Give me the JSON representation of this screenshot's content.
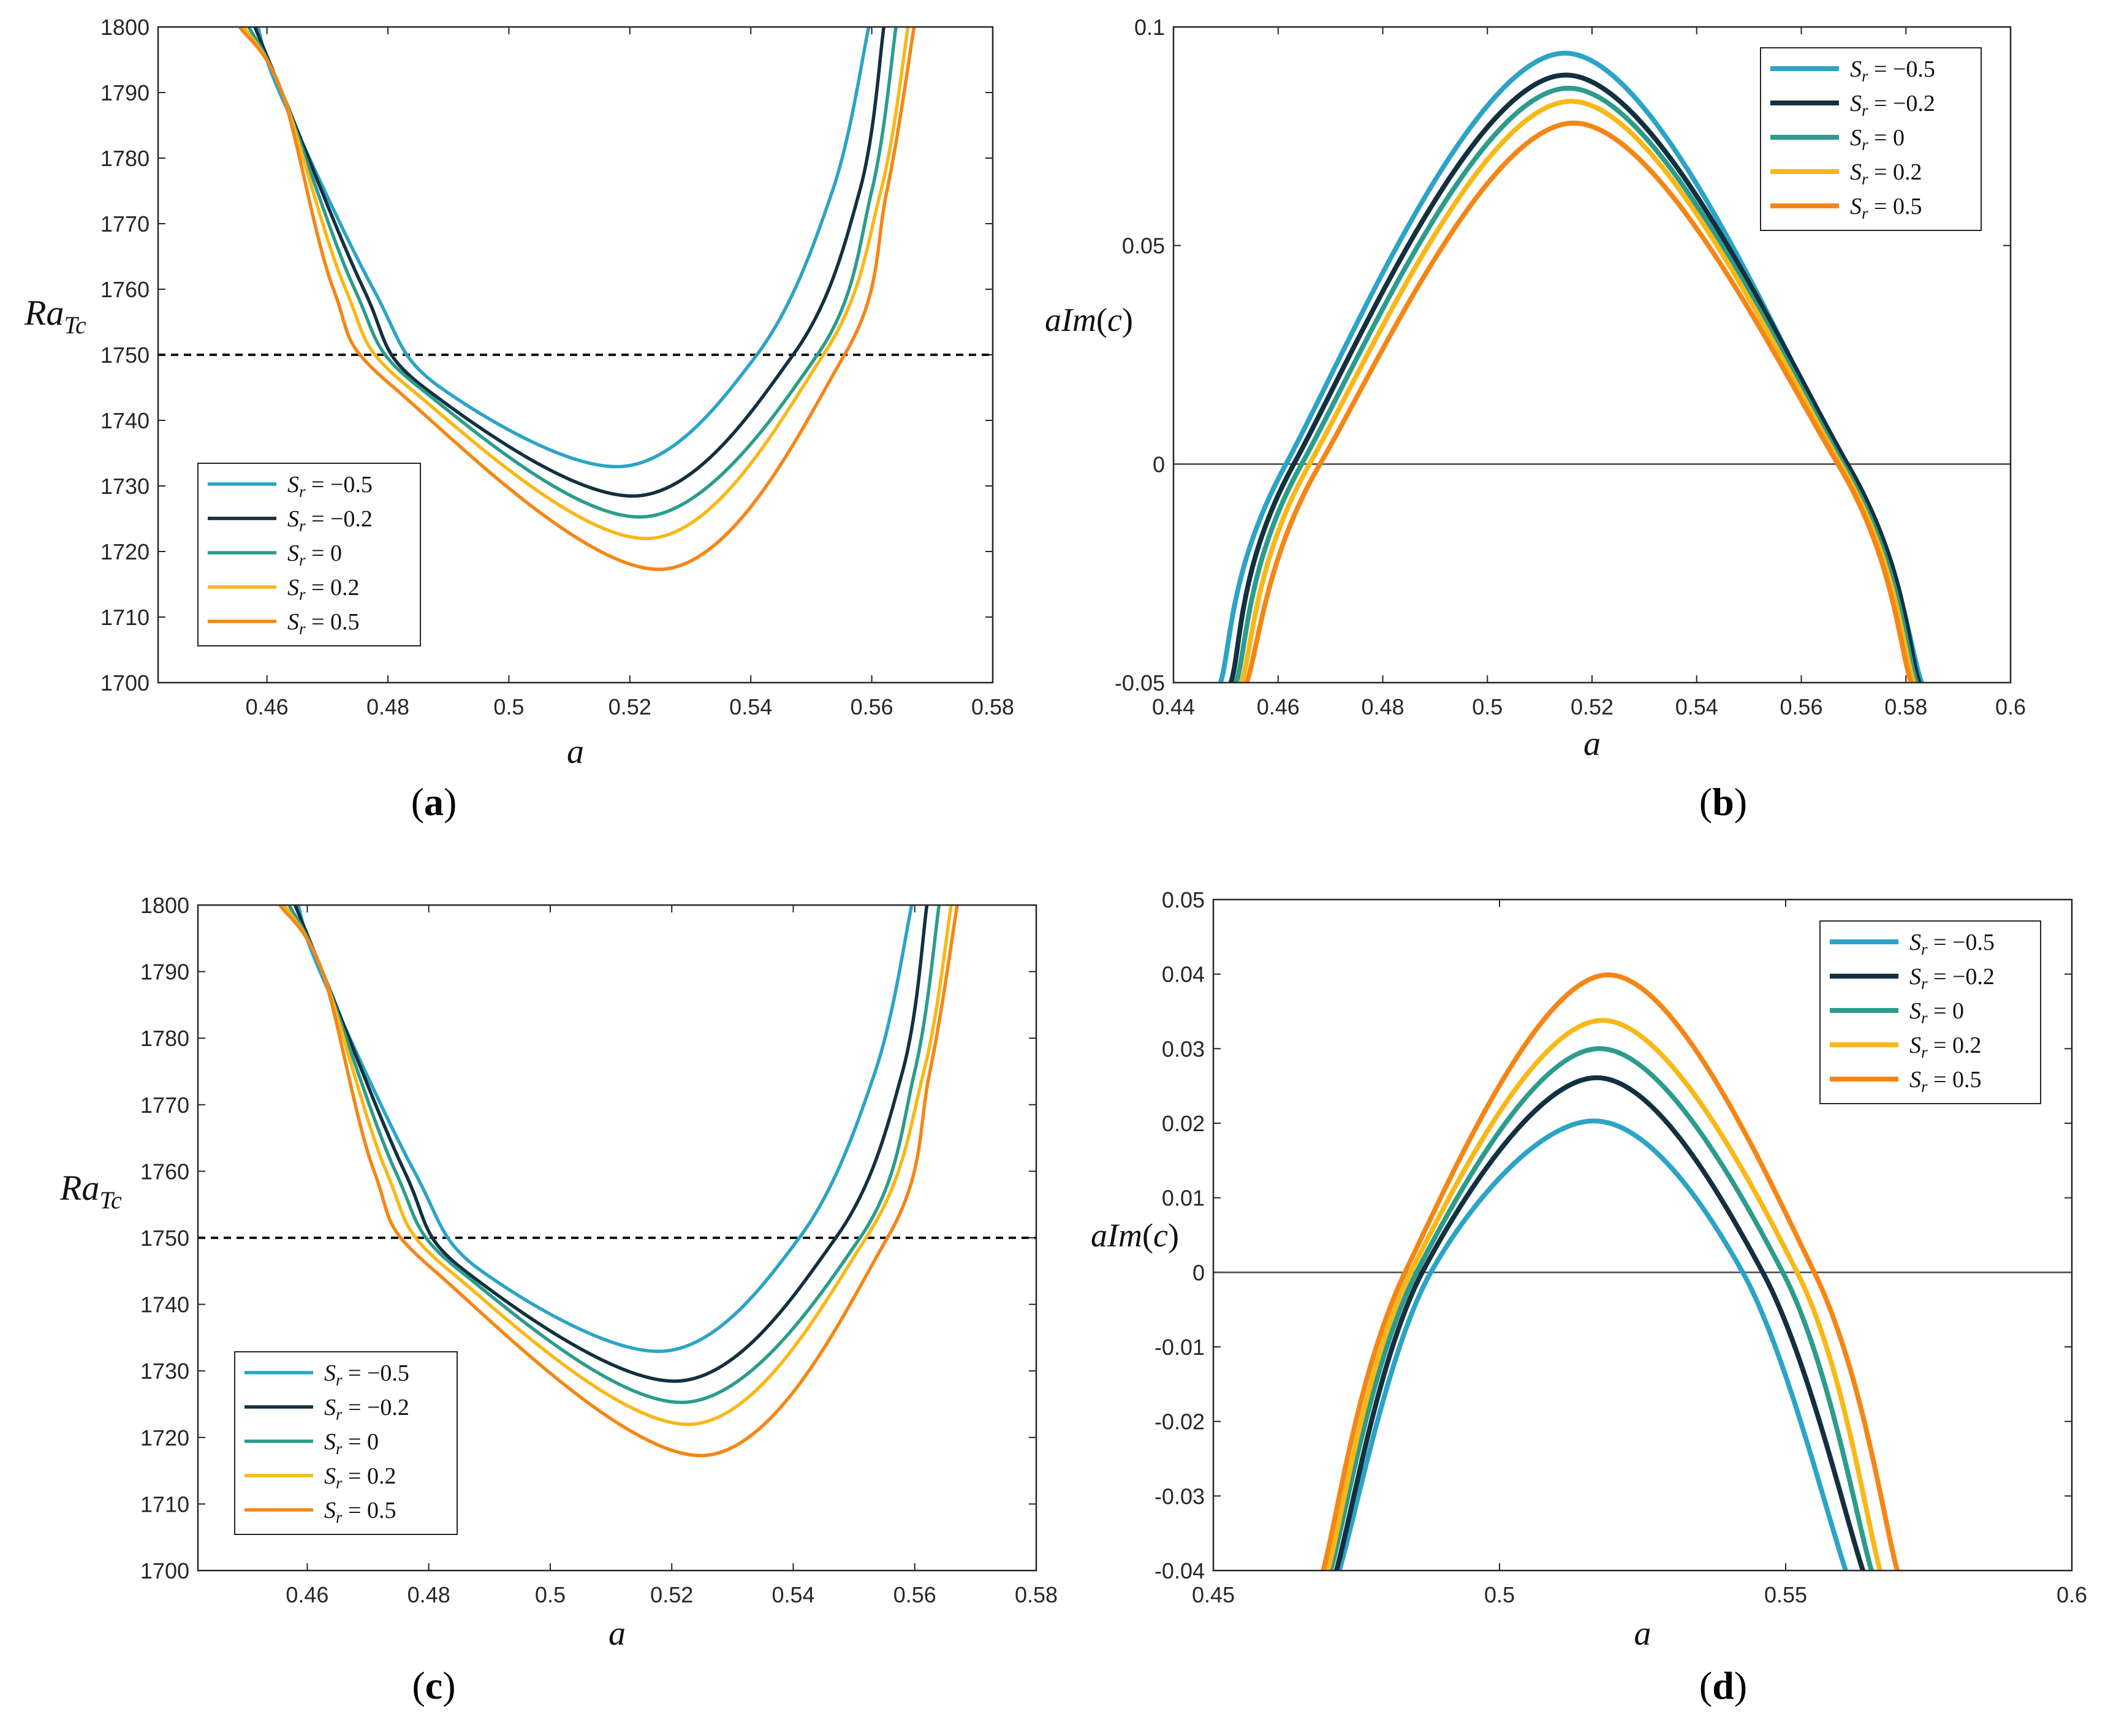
{
  "colors": {
    "Sr=-0.5": "#2ba4c6",
    "Sr=-0.2": "#123040",
    "Sr=0": "#2c9c8c",
    "Sr=0.2": "#f8b817",
    "Sr=0.5": "#f58616"
  },
  "chart_data": [
    {
      "type": "line",
      "panel_label": "a",
      "xlabel": "a",
      "ylabel": "Ra_{Tc}",
      "xlim": [
        0.442,
        0.58
      ],
      "ylim": [
        1700,
        1800
      ],
      "xticks": [
        0.46,
        0.48,
        0.5,
        0.52,
        0.54,
        0.56,
        0.58
      ],
      "yticks": [
        1700,
        1710,
        1720,
        1730,
        1740,
        1750,
        1760,
        1770,
        1780,
        1790,
        1800
      ],
      "reference_line": {
        "y": 1750,
        "style": "dashed"
      },
      "legend_position": "bottom-left",
      "series": [
        {
          "name": "S_r = −0.5",
          "color_key": "Sr=-0.5",
          "x": [
            0.4585,
            0.4621,
            0.4776,
            0.4887,
            0.5191,
            0.541,
            0.5535,
            0.5595
          ],
          "y": [
            1800,
            1790,
            1760,
            1745,
            1733,
            1750,
            1775,
            1800
          ]
        },
        {
          "name": "S_r = −0.2",
          "color_key": "Sr=-0.2",
          "x": [
            0.458,
            0.4625,
            0.476,
            0.486,
            0.5215,
            0.547,
            0.558,
            0.562
          ],
          "y": [
            1800,
            1790,
            1760,
            1745,
            1728.5,
            1750,
            1775,
            1800
          ]
        },
        {
          "name": "S_r = 0",
          "color_key": "Sr=0",
          "x": [
            0.457,
            0.4625,
            0.4745,
            0.4852,
            0.5225,
            0.551,
            0.56,
            0.564
          ],
          "y": [
            1800,
            1790,
            1760,
            1745,
            1725.3,
            1750,
            1775,
            1800
          ]
        },
        {
          "name": "S_r = 0.2",
          "color_key": "Sr=0.2",
          "x": [
            0.4562,
            0.4625,
            0.473,
            0.4835,
            0.5235,
            0.552,
            0.5615,
            0.566
          ],
          "y": [
            1800,
            1790,
            1760,
            1745,
            1722,
            1750,
            1775,
            1800
          ]
        },
        {
          "name": "S_r = 0.5",
          "color_key": "Sr=0.5",
          "x": [
            0.4555,
            0.4625,
            0.471,
            0.481,
            0.5255,
            0.5555,
            0.5625,
            0.567
          ],
          "y": [
            1800,
            1790,
            1760,
            1745,
            1717.3,
            1750,
            1775,
            1800
          ]
        }
      ]
    },
    {
      "type": "line",
      "panel_label": "b",
      "xlabel": "a",
      "ylabel": "aIm(c)",
      "xlim": [
        0.44,
        0.6
      ],
      "ylim": [
        -0.05,
        0.1
      ],
      "xticks": [
        0.44,
        0.46,
        0.48,
        0.5,
        0.52,
        0.54,
        0.56,
        0.58,
        0.6
      ],
      "yticks": [
        -0.05,
        0,
        0.05,
        0.1
      ],
      "tick_labels_y": [
        "-0.05",
        "0",
        "0.05",
        "0.1"
      ],
      "reference_line": {
        "y": 0,
        "style": "solid"
      },
      "legend_position": "top-right",
      "series": [
        {
          "name": "S_r = −0.5",
          "color_key": "Sr=-0.5",
          "x": [
            0.449,
            0.4615,
            0.5148,
            0.5683,
            0.583
          ],
          "y": [
            -0.05,
            0,
            0.094,
            0,
            -0.05
          ]
        },
        {
          "name": "S_r = −0.2",
          "color_key": "Sr=-0.2",
          "x": [
            0.451,
            0.463,
            0.515,
            0.5688,
            0.5825
          ],
          "y": [
            -0.05,
            0,
            0.089,
            0,
            -0.05
          ]
        },
        {
          "name": "S_r = 0",
          "color_key": "Sr=0",
          "x": [
            0.452,
            0.4645,
            0.5155,
            0.568,
            0.582
          ],
          "y": [
            -0.05,
            0,
            0.086,
            0,
            -0.05
          ]
        },
        {
          "name": "S_r = 0.2",
          "color_key": "Sr=0.2",
          "x": [
            0.453,
            0.466,
            0.516,
            0.5675,
            0.5815
          ],
          "y": [
            -0.05,
            0,
            0.083,
            0,
            -0.05
          ]
        },
        {
          "name": "S_r = 0.5",
          "color_key": "Sr=0.5",
          "x": [
            0.454,
            0.468,
            0.5165,
            0.567,
            0.581
          ],
          "y": [
            -0.05,
            0,
            0.078,
            0,
            -0.05
          ]
        }
      ]
    },
    {
      "type": "line",
      "panel_label": "c",
      "xlabel": "a",
      "ylabel": "Ra_{Tc}",
      "xlim": [
        0.442,
        0.58
      ],
      "ylim": [
        1700,
        1800
      ],
      "xticks": [
        0.46,
        0.48,
        0.5,
        0.52,
        0.54,
        0.56,
        0.58
      ],
      "yticks": [
        1700,
        1710,
        1720,
        1730,
        1740,
        1750,
        1760,
        1770,
        1780,
        1790,
        1800
      ],
      "reference_line": {
        "y": 1750,
        "style": "dashed"
      },
      "legend_position": "bottom-left",
      "series": [
        {
          "name": "S_r = −0.5",
          "color_key": "Sr=-0.5",
          "x": [
            0.4585,
            0.4621,
            0.4776,
            0.4887,
            0.5191,
            0.541,
            0.5535,
            0.5595
          ],
          "y": [
            1800,
            1790,
            1760,
            1745,
            1733,
            1750,
            1775,
            1800
          ]
        },
        {
          "name": "S_r = −0.2",
          "color_key": "Sr=-0.2",
          "x": [
            0.458,
            0.4625,
            0.476,
            0.486,
            0.5215,
            0.547,
            0.558,
            0.562
          ],
          "y": [
            1800,
            1790,
            1760,
            1745,
            1728.5,
            1750,
            1775,
            1800
          ]
        },
        {
          "name": "S_r = 0",
          "color_key": "Sr=0",
          "x": [
            0.457,
            0.4625,
            0.4745,
            0.4852,
            0.5225,
            0.551,
            0.56,
            0.564
          ],
          "y": [
            1800,
            1790,
            1760,
            1745,
            1725.3,
            1750,
            1775,
            1800
          ]
        },
        {
          "name": "S_r = 0.2",
          "color_key": "Sr=0.2",
          "x": [
            0.4562,
            0.4625,
            0.473,
            0.4835,
            0.5235,
            0.552,
            0.5615,
            0.566
          ],
          "y": [
            1800,
            1790,
            1760,
            1745,
            1722,
            1750,
            1775,
            1800
          ]
        },
        {
          "name": "S_r = 0.5",
          "color_key": "Sr=0.5",
          "x": [
            0.4555,
            0.4625,
            0.471,
            0.481,
            0.5255,
            0.5555,
            0.5625,
            0.567
          ],
          "y": [
            1800,
            1790,
            1760,
            1745,
            1717.3,
            1750,
            1775,
            1800
          ]
        }
      ]
    },
    {
      "type": "line",
      "panel_label": "d",
      "xlabel": "a",
      "ylabel": "aIm(c)",
      "xlim": [
        0.45,
        0.6
      ],
      "ylim": [
        -0.04,
        0.05
      ],
      "xticks": [
        0.45,
        0.5,
        0.55,
        0.6
      ],
      "yticks": [
        -0.04,
        -0.03,
        -0.02,
        -0.01,
        0,
        0.01,
        0.02,
        0.03,
        0.04,
        0.05
      ],
      "tick_labels_y": [
        "-0.04",
        "-0.03",
        "-0.02",
        "-0.01",
        "0",
        "0.01",
        "0.02",
        "0.03",
        "0.04",
        "0.05"
      ],
      "reference_line": {
        "y": 0,
        "style": "solid"
      },
      "legend_position": "top-right",
      "series": [
        {
          "name": "S_r = −0.5",
          "color_key": "Sr=-0.5",
          "x": [
            0.472,
            0.488,
            0.5165,
            0.5425,
            0.5605
          ],
          "y": [
            -0.04,
            0,
            0.0203,
            0,
            -0.04
          ]
        },
        {
          "name": "S_r = −0.2",
          "color_key": "Sr=-0.2",
          "x": [
            0.4715,
            0.4865,
            0.517,
            0.546,
            0.5635
          ],
          "y": [
            -0.04,
            0,
            0.0261,
            0,
            -0.04
          ]
        },
        {
          "name": "S_r = 0",
          "color_key": "Sr=0",
          "x": [
            0.4705,
            0.4855,
            0.5175,
            0.5495,
            0.565
          ],
          "y": [
            -0.04,
            0,
            0.03,
            0,
            -0.04
          ]
        },
        {
          "name": "S_r = 0.2",
          "color_key": "Sr=0.2",
          "x": [
            0.47,
            0.4845,
            0.518,
            0.552,
            0.5665
          ],
          "y": [
            -0.04,
            0,
            0.0338,
            0,
            -0.04
          ]
        },
        {
          "name": "S_r = 0.5",
          "color_key": "Sr=0.5",
          "x": [
            0.4692,
            0.4835,
            0.519,
            0.555,
            0.5695
          ],
          "y": [
            -0.04,
            0,
            0.0399,
            0,
            -0.04
          ]
        }
      ]
    }
  ]
}
